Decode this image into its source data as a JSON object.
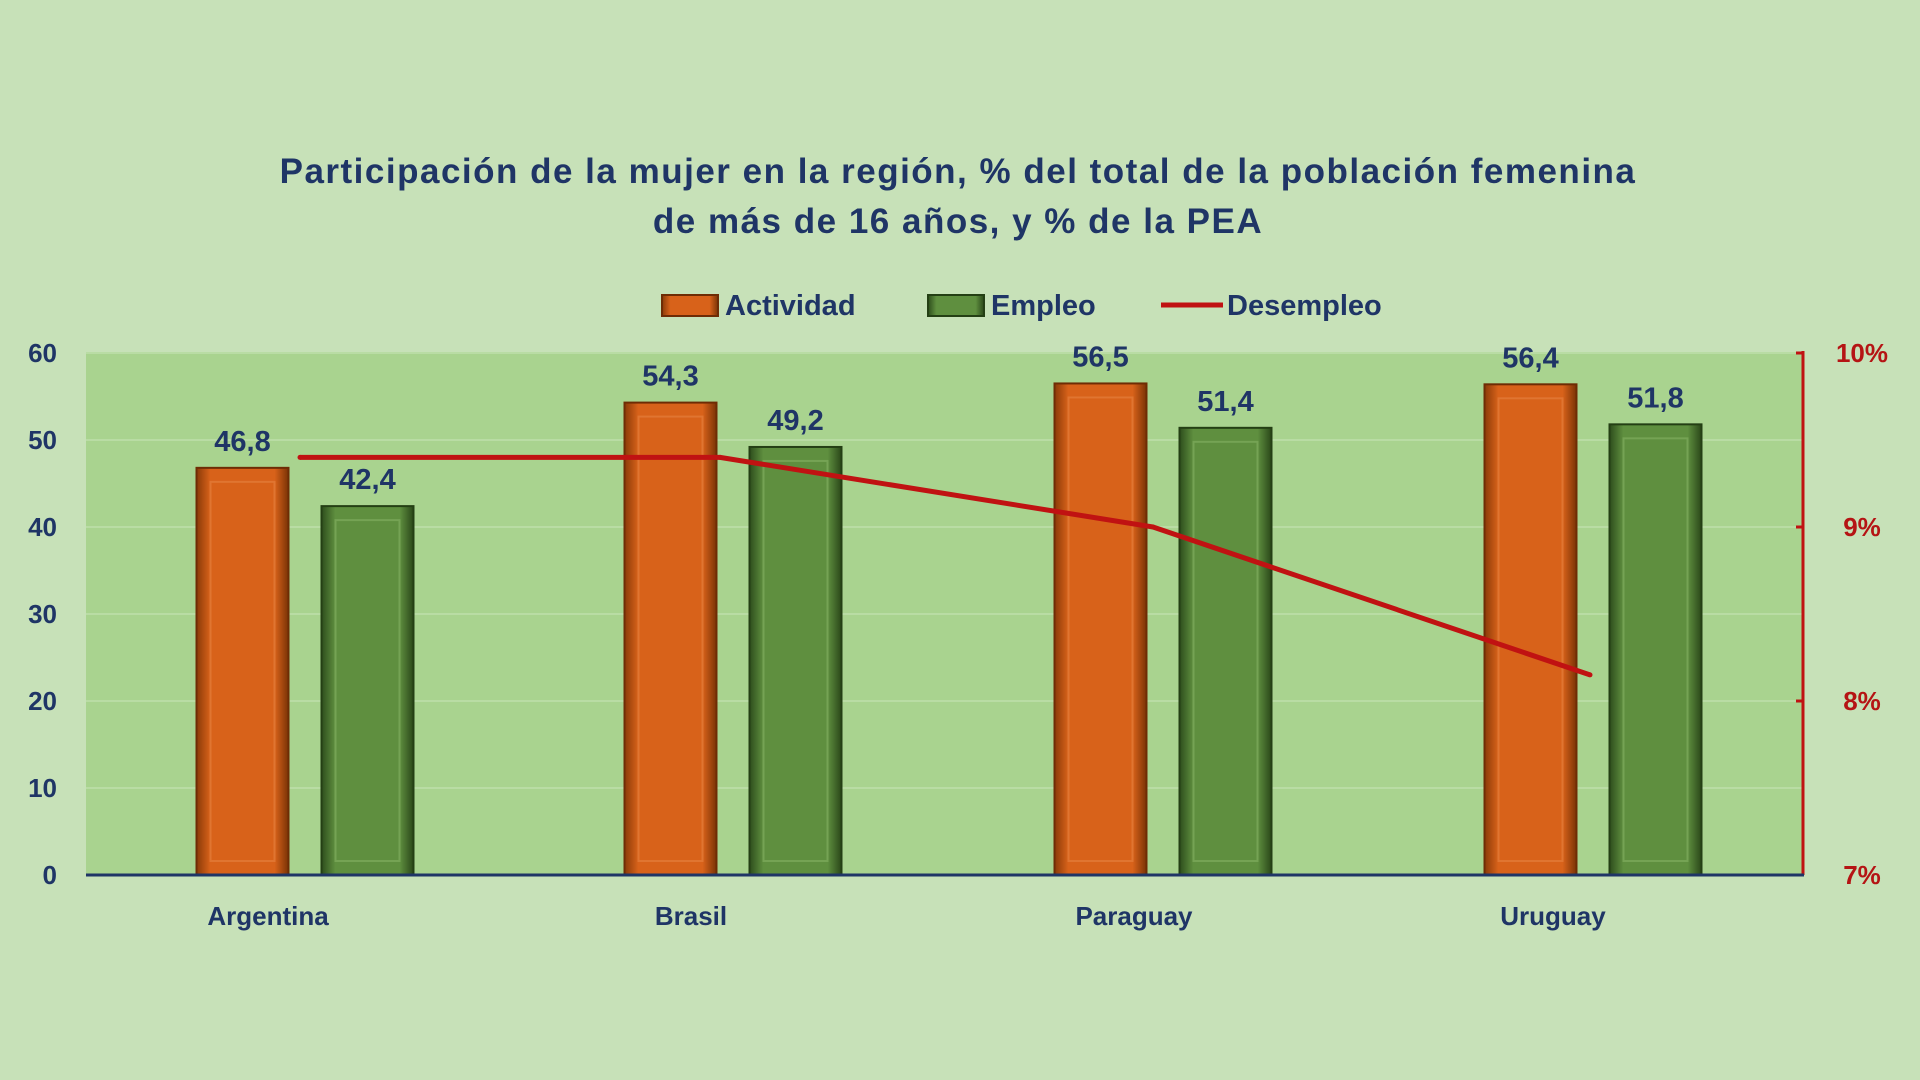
{
  "chart_data": {
    "type": "bar",
    "title_lines": [
      "Participación de la mujer en la región, % del total de la población femenina",
      "de más de 16 años, y % de la PEA"
    ],
    "categories": [
      "Argentina",
      "Brasil",
      "Paraguay",
      "Uruguay"
    ],
    "series": [
      {
        "name": "Actividad",
        "type": "bar",
        "color": "#d25e14",
        "values": [
          46.8,
          54.3,
          56.5,
          56.4
        ],
        "labels": [
          "46,8",
          "54,3",
          "56,5",
          "56,4"
        ]
      },
      {
        "name": "Empleo",
        "type": "bar",
        "color": "#5b8b3b",
        "values": [
          42.4,
          49.2,
          51.4,
          51.8
        ],
        "labels": [
          "42,4",
          "49,2",
          "51,4",
          "51,8"
        ]
      },
      {
        "name": "Desempleo",
        "type": "line",
        "axis": "right",
        "color": "#c01212",
        "values": [
          9.4,
          9.4,
          9.0,
          8.15
        ]
      }
    ],
    "ylim": [
      0,
      60
    ],
    "y_ticks": [
      "0",
      "10",
      "20",
      "30",
      "40",
      "50",
      "60"
    ],
    "y2lim": [
      7,
      10
    ],
    "y2_ticks": [
      "7%",
      "8%",
      "9%",
      "10%"
    ],
    "legend_position": "top-center",
    "plot_background": "#a9d38f",
    "page_background": "#c7e1b8",
    "grid": true
  }
}
